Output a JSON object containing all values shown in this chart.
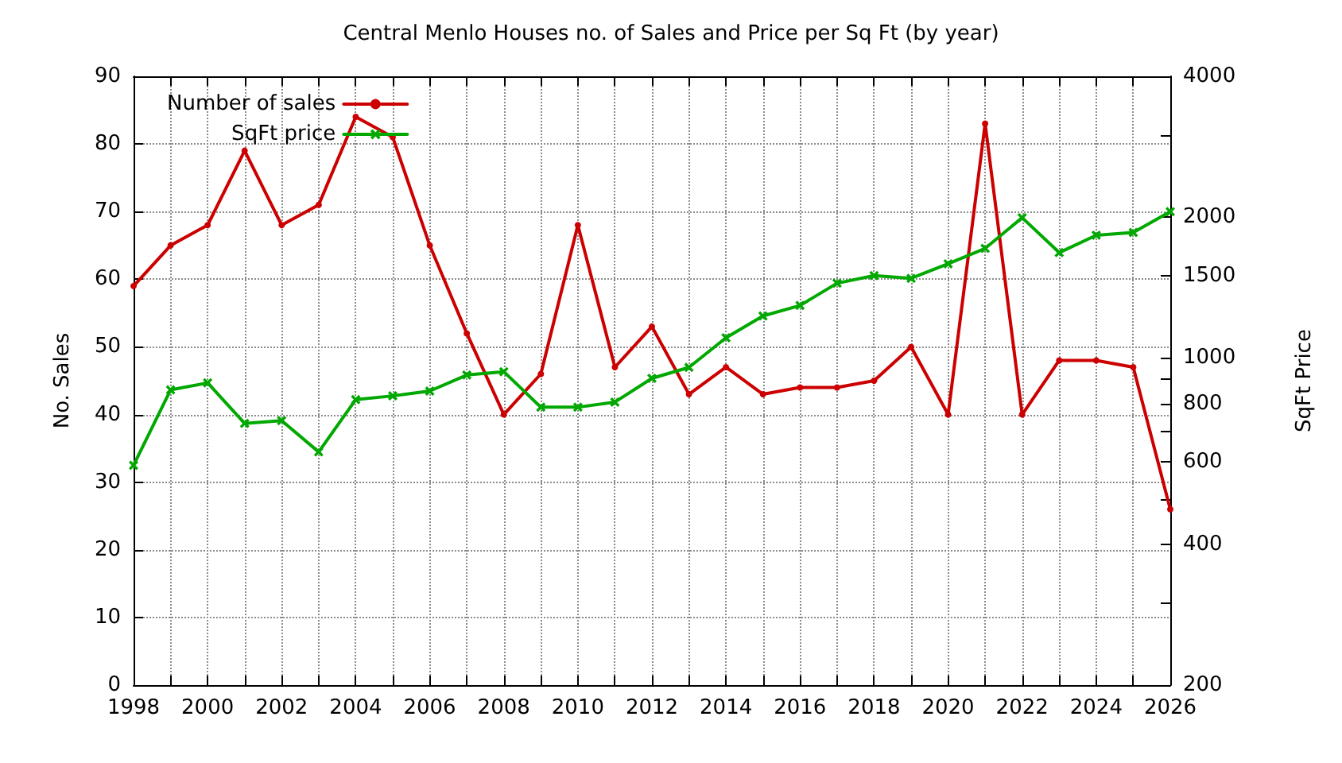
{
  "chart_data": {
    "type": "line",
    "title": "Central Menlo Houses no. of Sales and Price per Sq Ft (by year)",
    "ylabel": "No. Sales",
    "y2label": "SqFt Price",
    "x": [
      1998,
      1999,
      2000,
      2001,
      2002,
      2003,
      2004,
      2005,
      2006,
      2007,
      2008,
      2009,
      2010,
      2011,
      2012,
      2013,
      2014,
      2015,
      2016,
      2017,
      2018,
      2019,
      2020,
      2021,
      2022,
      2023,
      2024,
      2025,
      2026
    ],
    "series": [
      {
        "name": "Number of sales",
        "color": "#cc0000",
        "marker": "circle",
        "values": [
          59,
          65,
          68,
          79,
          68,
          71,
          84,
          81,
          65,
          52,
          40,
          46,
          68,
          47,
          53,
          43,
          47,
          43,
          44,
          44,
          45,
          50,
          40,
          83,
          40,
          48,
          48,
          47,
          26
        ]
      },
      {
        "name": "SqFt price",
        "color": "#00a800",
        "marker": "cross",
        "axis": "y2",
        "values": [
          590,
          855,
          885,
          725,
          735,
          630,
          815,
          830,
          850,
          920,
          935,
          785,
          785,
          805,
          905,
          955,
          1105,
          1230,
          1295,
          1445,
          1500,
          1480,
          1590,
          1715,
          1995,
          1680,
          1830,
          1855,
          2055
        ]
      }
    ],
    "xlim": [
      1998,
      2026
    ],
    "xticks": [
      1998,
      {
        "value": 1999,
        "label": null
      },
      2000,
      {
        "value": 2001,
        "label": null
      },
      2002,
      {
        "value": 2003,
        "label": null
      },
      2004,
      {
        "value": 2005,
        "label": null
      },
      2006,
      {
        "value": 2007,
        "label": null
      },
      2008,
      {
        "value": 2009,
        "label": null
      },
      2010,
      {
        "value": 2011,
        "label": null
      },
      2012,
      {
        "value": 2013,
        "label": null
      },
      2014,
      {
        "value": 2015,
        "label": null
      },
      2016,
      {
        "value": 2017,
        "label": null
      },
      2018,
      {
        "value": 2019,
        "label": null
      },
      2020,
      {
        "value": 2021,
        "label": null
      },
      2022,
      {
        "value": 2023,
        "label": null
      },
      2024,
      {
        "value": 2025,
        "label": null
      },
      2026
    ],
    "ylim": [
      0,
      90
    ],
    "yticks": [
      0,
      10,
      20,
      30,
      40,
      50,
      60,
      70,
      80,
      90
    ],
    "y2lim": [
      200,
      4000
    ],
    "y2ticks": [
      200,
      {
        "value": 300,
        "label": null
      },
      400,
      {
        "value": 500,
        "label": null
      },
      600,
      {
        "value": 700,
        "label": null
      },
      800,
      {
        "value": 900,
        "label": null
      },
      1000,
      1500,
      2000,
      {
        "value": 3000,
        "label": null
      },
      4000
    ],
    "log": "y2",
    "grid": true,
    "legend": "top left",
    "line_style": "solid"
  }
}
